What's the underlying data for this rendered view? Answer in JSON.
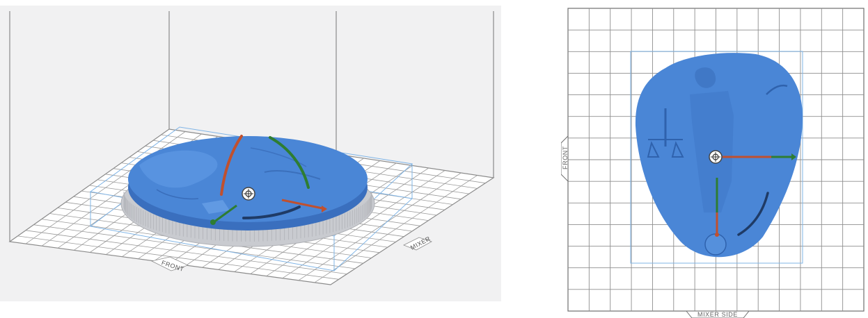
{
  "perspective_view": {
    "front_label": "FRONT",
    "side_label": "MIXER"
  },
  "top_view": {
    "front_label": "FRONT",
    "bottom_label": "MIXER SIDE"
  },
  "colors": {
    "model": "#4a86d6",
    "model_dark": "#3a6fbe",
    "support": "#c9cbd0",
    "rotate_red": "#c0502e",
    "rotate_green": "#2e7d32",
    "rotate_navy": "#1f3b66",
    "bounds": "#7fb4e6",
    "grid": "#9a9a9a"
  },
  "icons": {
    "move_handle": "move-arrows-icon"
  }
}
